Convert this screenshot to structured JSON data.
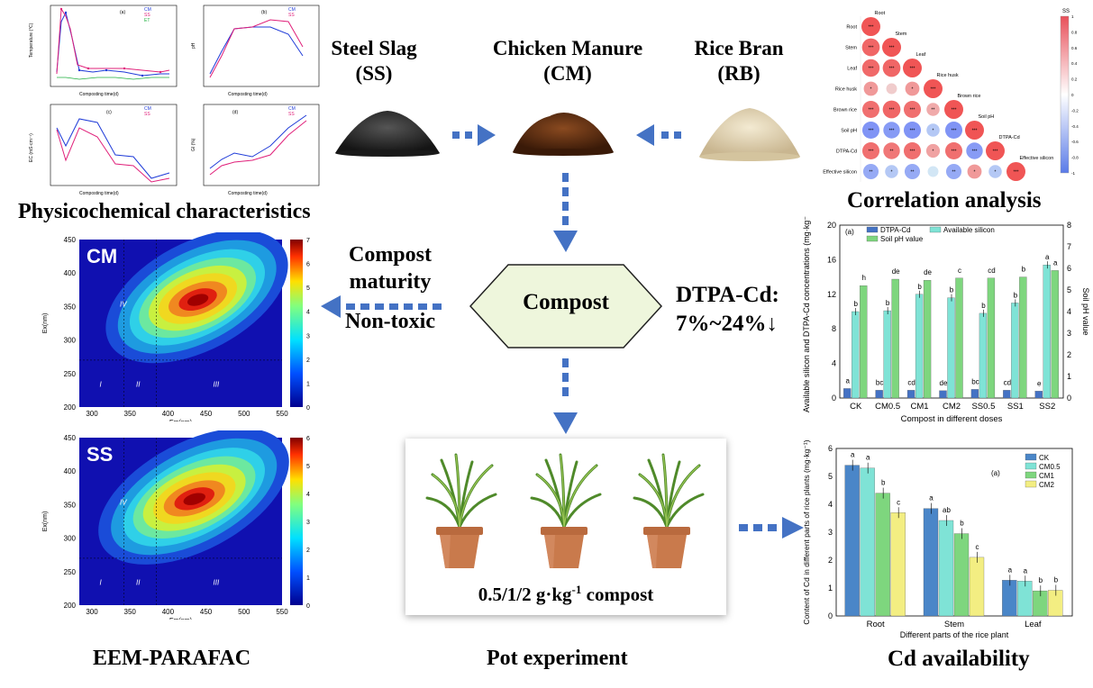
{
  "materials": {
    "ss_name": "Steel Slag",
    "ss_abbr": "(SS)",
    "cm_name": "Chicken Manure",
    "cm_abbr": "(CM)",
    "rb_name": "Rice Bran",
    "rb_abbr": "(RB)"
  },
  "titles": {
    "physico": "Physicochemical characteristics",
    "correlation": "Correlation analysis",
    "eem": "EEM-PARAFAC",
    "pot": "Pot experiment",
    "cd": "Cd availability"
  },
  "center": {
    "compost_label": "Compost",
    "maturity_line1": "Compost",
    "maturity_line2": "maturity",
    "nontoxic": "Non-toxic",
    "dtpa_line1": "DTPA-Cd:",
    "dtpa_line2": "7%~24%↓",
    "pot_dose": "0.5/1/2 g·kg",
    "pot_dose_sup": "-1",
    "pot_dose_tail": " compost"
  },
  "colors": {
    "arrow": "#4472c4",
    "compost_fill": "#eef6dc",
    "dtpa_bar": "#4472c4",
    "si_bar": "#7fe3d6",
    "ph_bar": "#7ed67e",
    "cd_ck": "#4a86c8",
    "cd_cm05": "#7fe3d6",
    "cd_cm1": "#7ed67e",
    "cd_cm2": "#f3ee82"
  },
  "physico_panels": {
    "a": {
      "label": "(a)",
      "xlabel": "Composting time(d)",
      "ylabel": "Temperature (℃)",
      "legend": [
        "CM",
        "SS",
        "ET"
      ],
      "yticks": [
        "70",
        "60",
        "50",
        "40",
        "30",
        "20",
        "10",
        "0"
      ],
      "xticks": [
        "0",
        "10",
        "20",
        "30",
        "40",
        "50"
      ]
    },
    "b": {
      "label": "(b)",
      "xlabel": "Composting time(d)",
      "ylabel": "pH",
      "legend": [
        "CM",
        "SS"
      ],
      "yticks": [
        "9.0",
        "8.8",
        "8.6",
        "8.4",
        "8.2",
        "8.0",
        "7.8",
        "7.6"
      ],
      "xticks": [
        "0",
        "10",
        "20",
        "30",
        "40",
        "50"
      ]
    },
    "c": {
      "label": "(c)",
      "xlabel": "Composting time(d)",
      "ylabel": "EC (mS·cm⁻¹)",
      "legend": [
        "CM",
        "SS"
      ],
      "yticks": [
        "7",
        "6",
        "5",
        "4",
        "3"
      ],
      "xticks": [
        "0",
        "10",
        "20",
        "30",
        "40",
        "50"
      ]
    },
    "d": {
      "label": "(d)",
      "xlabel": "Composting time(d)",
      "ylabel": "GI (%)",
      "legend": [
        "CM",
        "SS"
      ],
      "yticks": [
        "120",
        "100",
        "80",
        "60",
        "40",
        "20",
        "0"
      ],
      "xticks": [
        "0",
        "10",
        "20",
        "30",
        "40",
        "50"
      ]
    }
  },
  "correlation": {
    "labels": [
      "Root",
      "Stem",
      "Leaf",
      "Rice husk",
      "Brown rice",
      "Soil pH",
      "DTPA-Cd",
      "Effective silicon"
    ],
    "colorbar_title": "SS",
    "colorbar_ticks": [
      "1",
      "0.8",
      "0.6",
      "0.4",
      "0.2",
      "0",
      "-0.2",
      "-0.4",
      "-0.6",
      "-0.8",
      "-1"
    ],
    "values": [
      [
        1
      ],
      [
        0.9,
        1
      ],
      [
        0.88,
        0.9,
        1
      ],
      [
        0.6,
        0.3,
        0.6,
        1
      ],
      [
        0.85,
        0.9,
        0.85,
        0.5,
        1
      ],
      [
        -0.85,
        -0.8,
        -0.85,
        -0.5,
        -0.85,
        1
      ],
      [
        0.85,
        0.8,
        0.85,
        0.55,
        0.85,
        -0.8,
        1
      ],
      [
        -0.7,
        -0.5,
        -0.7,
        -0.3,
        -0.7,
        0.6,
        -0.5,
        1
      ]
    ],
    "stars": [
      [
        "***"
      ],
      [
        "***",
        "***"
      ],
      [
        "***",
        "***",
        "***"
      ],
      [
        "*",
        "",
        "*",
        "***"
      ],
      [
        "***",
        "***",
        "***",
        "**",
        "***"
      ],
      [
        "***",
        "***",
        "***",
        "*",
        "***",
        "***"
      ],
      [
        "***",
        "**",
        "***",
        "*",
        "***",
        "***",
        "***"
      ],
      [
        "**",
        "*",
        "**",
        "",
        "**",
        "*",
        "*",
        "***"
      ]
    ]
  },
  "eem": [
    {
      "label": "CM",
      "xlabel": "Em(nm)",
      "ylabel": "Ex(nm)",
      "xticks": [
        "300",
        "350",
        "400",
        "450",
        "500",
        "550"
      ],
      "yticks": [
        "450",
        "400",
        "350",
        "300",
        "250",
        "200"
      ],
      "colorbar_ticks": [
        "7",
        "6",
        "5",
        "4",
        "3",
        "2",
        "1",
        "0"
      ],
      "regions": [
        "I",
        "II",
        "III",
        "IV"
      ]
    },
    {
      "label": "SS",
      "xlabel": "Em(nm)",
      "ylabel": "Ex(nm)",
      "xticks": [
        "300",
        "350",
        "400",
        "450",
        "500",
        "550"
      ],
      "yticks": [
        "450",
        "400",
        "350",
        "300",
        "250",
        "200"
      ],
      "colorbar_ticks": [
        "6",
        "5",
        "4",
        "3",
        "2",
        "1",
        "0"
      ],
      "regions": [
        "I",
        "II",
        "III",
        "IV"
      ]
    }
  ],
  "chart_data": [
    {
      "type": "bar",
      "panel_label": "(a)",
      "categories": [
        "CK",
        "CM0.5",
        "CM1",
        "CM2",
        "SS0.5",
        "SS1",
        "SS2"
      ],
      "xlabel": "Compost in different doses",
      "ylabel": "Available silicon and DTPA-Cd concentrations (mg·kg⁻¹)",
      "ylabel_right": "Soil pH value",
      "ylim": [
        0,
        20
      ],
      "ylim_right": [
        0,
        8
      ],
      "yticks": [
        "0",
        "4",
        "8",
        "12",
        "16",
        "20"
      ],
      "yticks_right": [
        "0",
        "1",
        "2",
        "3",
        "4",
        "5",
        "6",
        "7",
        "8"
      ],
      "series": [
        {
          "name": "DTPA-Cd",
          "values": [
            1.1,
            0.9,
            0.9,
            0.85,
            1.0,
            0.9,
            0.8
          ],
          "letters": [
            "a",
            "bc",
            "cd",
            "de",
            "bc",
            "cd",
            "e"
          ]
        },
        {
          "name": "Available silicon",
          "values": [
            10.0,
            10.1,
            12.0,
            11.6,
            9.8,
            11.0,
            15.4
          ],
          "letters": [
            "b",
            "b",
            "b",
            "b",
            "b",
            "b",
            "a"
          ]
        },
        {
          "name": "Soil pH value",
          "axis": "right",
          "values": [
            5.2,
            5.5,
            5.45,
            5.55,
            5.55,
            5.6,
            5.9
          ],
          "letters": [
            "h",
            "de",
            "de",
            "c",
            "cd",
            "b",
            "a"
          ]
        }
      ],
      "legend": "top-left"
    },
    {
      "type": "bar",
      "panel_label": "(a)",
      "categories": [
        "Root",
        "Stem",
        "Leaf"
      ],
      "xlabel": "Different parts of the rice plant",
      "ylabel": "Content of Cd in different parts of rice plants (mg·kg⁻¹)",
      "ylim": [
        0,
        6
      ],
      "yticks": [
        "0",
        "1",
        "2",
        "3",
        "4",
        "5",
        "6"
      ],
      "series": [
        {
          "name": "CK",
          "values": [
            5.4,
            3.85,
            1.28
          ],
          "letters": [
            "a",
            "a",
            "a"
          ]
        },
        {
          "name": "CM0.5",
          "values": [
            5.3,
            3.42,
            1.25
          ],
          "letters": [
            "a",
            "ab",
            "a"
          ]
        },
        {
          "name": "CM1",
          "values": [
            4.4,
            2.95,
            0.9
          ],
          "letters": [
            "b",
            "b",
            "b"
          ]
        },
        {
          "name": "CM2",
          "values": [
            3.7,
            2.1,
            0.92
          ],
          "letters": [
            "c",
            "c",
            "b"
          ]
        }
      ],
      "legend": "top-right"
    }
  ]
}
